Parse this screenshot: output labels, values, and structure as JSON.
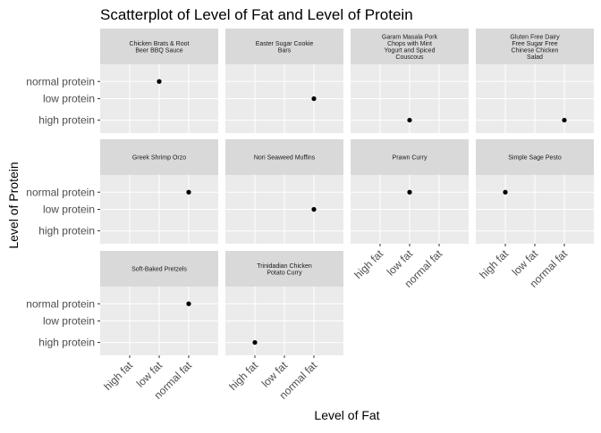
{
  "chart_data": {
    "type": "scatter",
    "title": "Scatterplot of Level of Fat and Level of Protein",
    "xlabel": "Level of Fat",
    "ylabel": "Level of Protein",
    "x_categories": [
      "high fat",
      "low fat",
      "normal fat"
    ],
    "y_categories": [
      "high protein",
      "low protein",
      "normal protein"
    ],
    "grid": true,
    "facet_columns": 4,
    "facets": [
      {
        "title": [
          "Chicken Brats & Root",
          "Beer BBQ Sauce"
        ],
        "points": [
          {
            "x": "low fat",
            "y": "normal protein"
          }
        ]
      },
      {
        "title": [
          "Easter Sugar Cookie",
          "Bars"
        ],
        "points": [
          {
            "x": "normal fat",
            "y": "low protein"
          }
        ]
      },
      {
        "title": [
          "Garam Masala Pork",
          "Chops with Mint",
          "Yogurt and Spiced",
          "Couscous"
        ],
        "points": [
          {
            "x": "low fat",
            "y": "high protein"
          }
        ]
      },
      {
        "title": [
          "Gluten Free Dairy",
          "Free Sugar Free",
          "Chinese Chicken",
          "Salad"
        ],
        "points": [
          {
            "x": "normal fat",
            "y": "high protein"
          }
        ]
      },
      {
        "title": [
          "Greek Shrimp Orzo"
        ],
        "points": [
          {
            "x": "normal fat",
            "y": "normal protein"
          }
        ]
      },
      {
        "title": [
          "Nori Seaweed Muffins"
        ],
        "points": [
          {
            "x": "normal fat",
            "y": "low protein"
          }
        ]
      },
      {
        "title": [
          "Prawn Curry"
        ],
        "points": [
          {
            "x": "low fat",
            "y": "normal protein"
          }
        ]
      },
      {
        "title": [
          "Simple Sage Pesto"
        ],
        "points": [
          {
            "x": "high fat",
            "y": "normal protein"
          }
        ]
      },
      {
        "title": [
          "Soft-Baked Pretzels"
        ],
        "points": [
          {
            "x": "normal fat",
            "y": "normal protein"
          }
        ]
      },
      {
        "title": [
          "Trinidadian Chicken",
          "Potato Curry"
        ],
        "points": [
          {
            "x": "high fat",
            "y": "high protein"
          }
        ]
      }
    ],
    "colors": {
      "panel": "#ebebeb",
      "strip": "#d9d9d9",
      "grid": "#ffffff",
      "point": "#000000"
    }
  }
}
